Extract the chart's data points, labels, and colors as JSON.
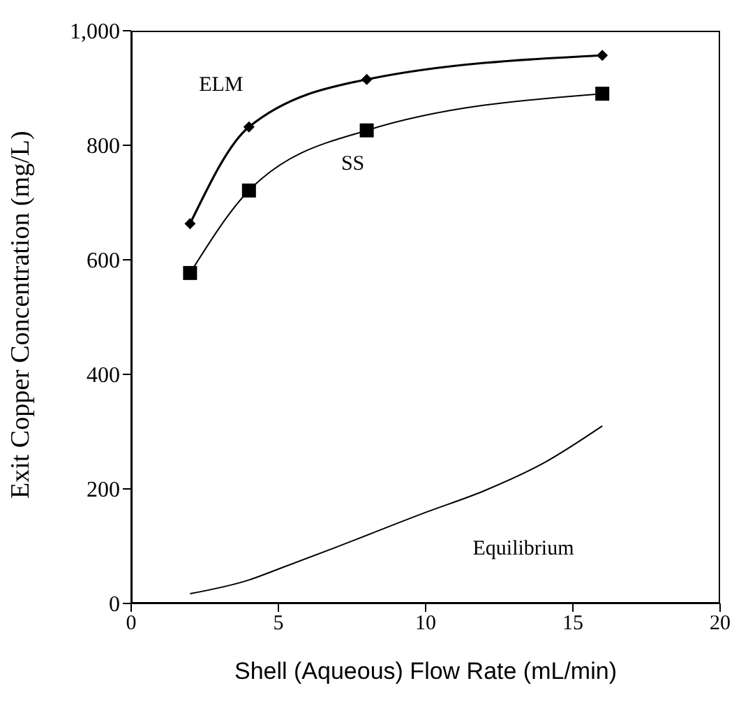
{
  "chart_data": {
    "type": "line",
    "xlabel": "Shell (Aqueous) Flow Rate (mL/min)",
    "ylabel": "Exit Copper Concentration (mg/L)",
    "xlim": [
      0,
      20
    ],
    "xticks": [
      0,
      5,
      10,
      15,
      20
    ],
    "ylim": [
      0,
      1000
    ],
    "yticks": [
      0,
      200,
      400,
      600,
      800,
      {
        "value": 1000,
        "label": "1,000"
      }
    ],
    "grid": false,
    "series": [
      {
        "name": "ELM",
        "color": "#000000",
        "marker": "diamond",
        "x": [
          2,
          4,
          8,
          16
        ],
        "values": [
          663,
          832,
          915,
          957
        ]
      },
      {
        "name": "SS",
        "color": "#000000",
        "marker": "square",
        "x": [
          2,
          4,
          8,
          16
        ],
        "values": [
          577,
          721,
          826,
          890
        ]
      },
      {
        "name": "Equilibrium",
        "color": "#000000",
        "marker": "none",
        "x": [
          2,
          4,
          5,
          7,
          10,
          12,
          14,
          16
        ],
        "values": [
          17,
          41,
          60,
          99,
          159,
          197,
          245,
          310
        ]
      }
    ]
  }
}
